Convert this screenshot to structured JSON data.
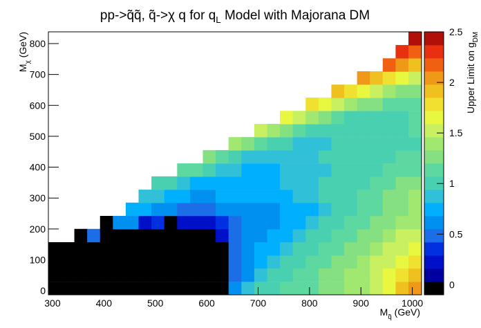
{
  "chart_data": {
    "type": "heatmap",
    "title": [
      "pp->q̃q̃, q̃->χ q for q",
      "L",
      " Model with Majorana DM"
    ],
    "x_label": [
      "M",
      "q̃",
      " (GeV)"
    ],
    "y_label": [
      "M",
      "χ",
      " (GeV)"
    ],
    "z_label": [
      "Upper Limit on g",
      "DM"
    ],
    "x": [
      305,
      330,
      355,
      380,
      405,
      430,
      455,
      480,
      505,
      530,
      555,
      580,
      605,
      630,
      655,
      680,
      705,
      730,
      755,
      780,
      805,
      830,
      855,
      880,
      905,
      930,
      955,
      980,
      1005
    ],
    "y": [
      8,
      51,
      94,
      136,
      179,
      221,
      264,
      306,
      349,
      391,
      434,
      476,
      519,
      561,
      604,
      646,
      689,
      731,
      774,
      816
    ],
    "z": [
      [
        0,
        0,
        0,
        0,
        0,
        0,
        0,
        0,
        0,
        0,
        0,
        0,
        0,
        0,
        0.62,
        0.88,
        1.01,
        1.01,
        1.14,
        1.14,
        1.14,
        1.27,
        1.27,
        1.4,
        1.4,
        1.53,
        1.66,
        1.92,
        2.05
      ],
      [
        0,
        0,
        0,
        0,
        0,
        0,
        0,
        0,
        0,
        0,
        0,
        0,
        0,
        0,
        0.49,
        0.62,
        0.88,
        1.01,
        1.01,
        1.14,
        1.14,
        1.27,
        1.27,
        1.4,
        1.4,
        1.53,
        1.66,
        1.79,
        1.92
      ],
      [
        0,
        0,
        0,
        0,
        0,
        0,
        0,
        0,
        0,
        0,
        0,
        0,
        0,
        0,
        0.49,
        0.62,
        0.75,
        0.88,
        1.01,
        1.01,
        1.14,
        1.14,
        1.27,
        1.27,
        1.4,
        1.53,
        1.53,
        1.66,
        1.79
      ],
      [
        0,
        0,
        0,
        0,
        0,
        0,
        0,
        0,
        0,
        0,
        0,
        0,
        0,
        0,
        0.49,
        0.62,
        0.75,
        0.75,
        0.88,
        1.01,
        1.01,
        1.14,
        1.14,
        1.27,
        1.27,
        1.4,
        1.53,
        1.53,
        1.66
      ],
      [
        null,
        null,
        0,
        0.49,
        0,
        0,
        0,
        0,
        0,
        0,
        0,
        0,
        0,
        0.23,
        0.49,
        0.62,
        0.62,
        0.75,
        0.75,
        0.88,
        1.01,
        1.01,
        1.14,
        1.14,
        1.27,
        1.27,
        1.4,
        1.53,
        1.53
      ],
      [
        null,
        null,
        null,
        null,
        0,
        0.62,
        0.62,
        0.23,
        0.36,
        0,
        0.23,
        0.23,
        0.23,
        0.36,
        0.49,
        0.62,
        0.62,
        0.62,
        0.75,
        0.75,
        0.88,
        1.01,
        1.01,
        1.14,
        1.14,
        1.27,
        1.27,
        1.4,
        1.4
      ],
      [
        null,
        null,
        null,
        null,
        null,
        null,
        0.75,
        0.75,
        0.62,
        0.62,
        0.49,
        0.49,
        0.49,
        0.62,
        0.62,
        0.62,
        0.62,
        0.62,
        0.75,
        0.75,
        0.75,
        0.88,
        1.01,
        1.01,
        1.14,
        1.14,
        1.27,
        1.27,
        1.4
      ],
      [
        null,
        null,
        null,
        null,
        null,
        null,
        null,
        0.88,
        0.88,
        0.75,
        0.75,
        0.62,
        0.62,
        0.75,
        0.75,
        0.75,
        0.75,
        0.75,
        0.75,
        0.88,
        0.88,
        1.01,
        1.01,
        1.01,
        1.14,
        1.14,
        1.27,
        1.27,
        1.4
      ],
      [
        null,
        null,
        null,
        null,
        null,
        null,
        null,
        null,
        1.01,
        1.01,
        0.88,
        0.75,
        0.75,
        0.75,
        0.75,
        0.75,
        0.75,
        0.75,
        0.88,
        0.88,
        0.88,
        1.01,
        1.01,
        1.01,
        1.01,
        1.14,
        1.14,
        1.27,
        1.27
      ],
      [
        null,
        null,
        null,
        null,
        null,
        null,
        null,
        null,
        null,
        null,
        1.14,
        1.14,
        1.01,
        0.88,
        0.88,
        0.75,
        0.75,
        0.75,
        0.88,
        0.88,
        0.88,
        0.88,
        1.01,
        1.01,
        1.01,
        1.01,
        1.14,
        1.14,
        1.14
      ],
      [
        null,
        null,
        null,
        null,
        null,
        null,
        null,
        null,
        null,
        null,
        null,
        null,
        1.27,
        1.14,
        1.01,
        0.88,
        0.88,
        0.88,
        0.88,
        0.88,
        0.88,
        1.01,
        1.01,
        1.01,
        1.01,
        1.01,
        1.01,
        1.14,
        1.14
      ],
      [
        null,
        null,
        null,
        null,
        null,
        null,
        null,
        null,
        null,
        null,
        null,
        null,
        null,
        null,
        1.4,
        1.27,
        1.14,
        1.01,
        1.01,
        0.88,
        0.88,
        0.88,
        1.01,
        1.01,
        1.01,
        1.01,
        1.01,
        1.01,
        1.01
      ],
      [
        null,
        null,
        null,
        null,
        null,
        null,
        null,
        null,
        null,
        null,
        null,
        null,
        null,
        null,
        null,
        null,
        1.53,
        1.4,
        1.27,
        1.14,
        1.01,
        1.01,
        1.01,
        1.01,
        1.01,
        1.01,
        1.01,
        1.01,
        1.14
      ],
      [
        null,
        null,
        null,
        null,
        null,
        null,
        null,
        null,
        null,
        null,
        null,
        null,
        null,
        null,
        null,
        null,
        null,
        null,
        1.66,
        1.53,
        1.4,
        1.27,
        1.14,
        1.01,
        1.01,
        1.01,
        1.01,
        1.01,
        1.14
      ],
      [
        null,
        null,
        null,
        null,
        null,
        null,
        null,
        null,
        null,
        null,
        null,
        null,
        null,
        null,
        null,
        null,
        null,
        null,
        null,
        null,
        1.79,
        1.66,
        1.53,
        1.4,
        1.27,
        1.27,
        1.14,
        1.14,
        1.14
      ],
      [
        null,
        null,
        null,
        null,
        null,
        null,
        null,
        null,
        null,
        null,
        null,
        null,
        null,
        null,
        null,
        null,
        null,
        null,
        null,
        null,
        null,
        null,
        1.92,
        1.79,
        1.66,
        1.53,
        1.4,
        1.27,
        1.27
      ],
      [
        null,
        null,
        null,
        null,
        null,
        null,
        null,
        null,
        null,
        null,
        null,
        null,
        null,
        null,
        null,
        null,
        null,
        null,
        null,
        null,
        null,
        null,
        null,
        null,
        2.05,
        1.92,
        1.79,
        1.66,
        1.53
      ],
      [
        null,
        null,
        null,
        null,
        null,
        null,
        null,
        null,
        null,
        null,
        null,
        null,
        null,
        null,
        null,
        null,
        null,
        null,
        null,
        null,
        null,
        null,
        null,
        null,
        null,
        null,
        2.18,
        2.05,
        1.92
      ],
      [
        null,
        null,
        null,
        null,
        null,
        null,
        null,
        null,
        null,
        null,
        null,
        null,
        null,
        null,
        null,
        null,
        null,
        null,
        null,
        null,
        null,
        null,
        null,
        null,
        null,
        null,
        null,
        2.31,
        2.18
      ],
      [
        null,
        null,
        null,
        null,
        null,
        null,
        null,
        null,
        null,
        null,
        null,
        null,
        null,
        null,
        null,
        null,
        null,
        null,
        null,
        null,
        null,
        null,
        null,
        null,
        null,
        null,
        null,
        null,
        2.44
      ]
    ],
    "xlim": [
      292,
      1018
    ],
    "ylim": [
      -13,
      838
    ],
    "zlim": [
      -0.1,
      2.5
    ],
    "xticks": [
      300,
      400,
      500,
      600,
      700,
      800,
      900,
      1000
    ],
    "yticks": [
      0,
      100,
      200,
      300,
      400,
      500,
      600,
      700,
      800
    ],
    "zticks": [
      0,
      0.5,
      1,
      1.5,
      2,
      2.5
    ],
    "colors": [
      "#000000",
      "#0000a0",
      "#0010c8",
      "#0030e0",
      "#1c6ee8",
      "#0090f0",
      "#00b0ff",
      "#30c0d8",
      "#48d0b0",
      "#5cd8a0",
      "#84e080",
      "#a0e870",
      "#c8f060",
      "#e8f840",
      "#f0e030",
      "#f0c020",
      "#f09818",
      "#f06010",
      "#e83010",
      "#b01008"
    ]
  }
}
